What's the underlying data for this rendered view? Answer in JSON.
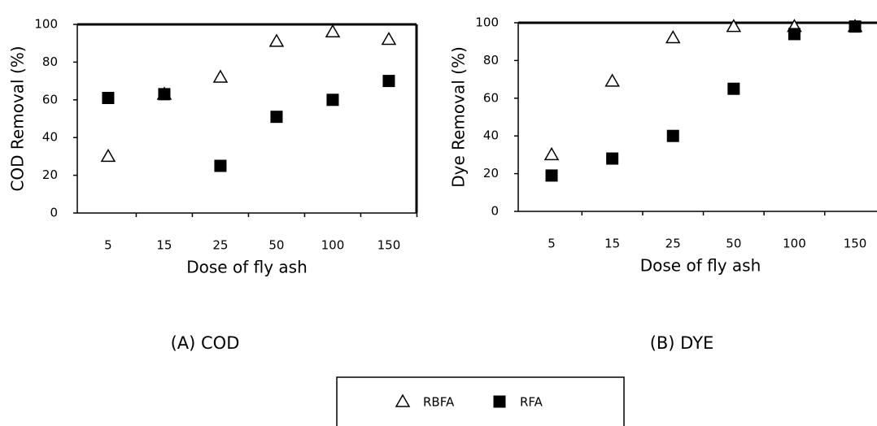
{
  "chart_data": [
    {
      "type": "scatter",
      "caption": "(A) COD",
      "ylabel": "COD Removal (%)",
      "xlabel": "Dose of fly ash",
      "categories": [
        "5",
        "15",
        "25",
        "50",
        "100",
        "150"
      ],
      "ylim": [
        0,
        100
      ],
      "yticks": [
        0,
        20,
        40,
        60,
        80,
        100
      ],
      "series": [
        {
          "name": "RBFA",
          "marker": "triangle",
          "color": "#000000",
          "values": [
            30,
            63,
            72,
            91,
            96,
            92
          ]
        },
        {
          "name": "RFA",
          "marker": "square",
          "color": "#000000",
          "values": [
            61,
            63,
            25,
            51,
            60,
            70
          ]
        }
      ]
    },
    {
      "type": "scatter",
      "caption": "(B) DYE",
      "ylabel": "Dye Removal (%)",
      "xlabel": "Dose of fly ash",
      "categories": [
        "5",
        "15",
        "25",
        "50",
        "100",
        "150"
      ],
      "ylim": [
        0,
        100
      ],
      "yticks": [
        0,
        20,
        40,
        60,
        80,
        100
      ],
      "series": [
        {
          "marker": "triangle",
          "color": "#000000",
          "values": [
            30,
            69,
            92,
            98,
            98,
            98
          ]
        },
        {
          "marker": "square",
          "color": "#000000",
          "values": [
            19,
            28,
            40,
            65,
            94,
            98
          ]
        }
      ]
    }
  ]
}
